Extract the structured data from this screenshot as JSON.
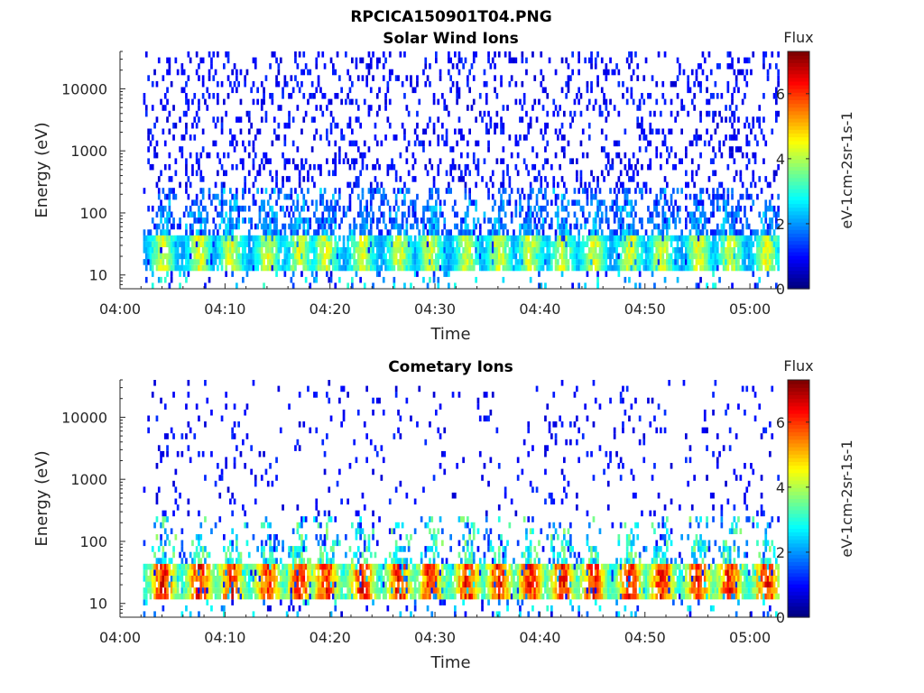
{
  "figure": {
    "filename_title": "RPCICA150901T04.PNG"
  },
  "colors": {
    "axes": "#262626",
    "colormap": "jet"
  },
  "chart_data": [
    {
      "type": "heatmap",
      "title": "Solar Wind Ions",
      "xlabel": "Time",
      "ylabel": "Energy (eV)",
      "x_tick_labels": [
        "04:00",
        "04:10",
        "04:20",
        "04:30",
        "04:40",
        "04:50",
        "05:00"
      ],
      "x_tick_minutes": [
        0,
        10,
        20,
        30,
        40,
        50,
        60
      ],
      "xlim_minutes": [
        0,
        63
      ],
      "data_x_range_minutes": [
        2.2,
        62.8
      ],
      "y_scale": "log",
      "ylim": [
        6,
        40000
      ],
      "y_tick_labels": [
        "10",
        "100",
        "1000",
        "10000"
      ],
      "y_tick_values": [
        10,
        100,
        1000,
        10000
      ],
      "colorbar": {
        "title": "Flux",
        "label": "eV-1cm-2sr-1s-1",
        "range": [
          0,
          7.3
        ],
        "tick_labels": [
          "0",
          "2",
          "4",
          "6"
        ],
        "tick_values": [
          0,
          2,
          4,
          6
        ]
      },
      "pattern": {
        "bursts_minutes": [
          4,
          7.5,
          10.5,
          14,
          17,
          19.5,
          23,
          26.5,
          29.5,
          33,
          36,
          39,
          42,
          45,
          48.5,
          51.5,
          55,
          58,
          61.5
        ],
        "core_energy_range_eV": [
          12,
          45
        ],
        "core_peak_flux": 4.8,
        "background_scatter_flux": 0.8,
        "scatter_density": 0.18
      }
    },
    {
      "type": "heatmap",
      "title": "Cometary Ions",
      "xlabel": "Time",
      "ylabel": "Energy (eV)",
      "x_tick_labels": [
        "04:00",
        "04:10",
        "04:20",
        "04:30",
        "04:40",
        "04:50",
        "05:00"
      ],
      "x_tick_minutes": [
        0,
        10,
        20,
        30,
        40,
        50,
        60
      ],
      "xlim_minutes": [
        0,
        63
      ],
      "data_x_range_minutes": [
        2.2,
        62.8
      ],
      "y_scale": "log",
      "ylim": [
        6,
        40000
      ],
      "y_tick_labels": [
        "10",
        "100",
        "1000",
        "10000"
      ],
      "y_tick_values": [
        10,
        100,
        1000,
        10000
      ],
      "colorbar": {
        "title": "Flux",
        "label": "eV-1cm-2sr-1s-1",
        "range": [
          0,
          7.3
        ],
        "tick_labels": [
          "0",
          "2",
          "4",
          "6"
        ],
        "tick_values": [
          0,
          2,
          4,
          6
        ]
      },
      "pattern": {
        "bursts_minutes": [
          4,
          7.5,
          10.5,
          14,
          17,
          19.5,
          23,
          26.5,
          29.5,
          33,
          36,
          39,
          42,
          45,
          48.5,
          51.5,
          55,
          58,
          61.5
        ],
        "core_energy_range_eV": [
          12,
          45
        ],
        "core_peak_flux": 7.0,
        "background_scatter_flux": 0.8,
        "scatter_density": 0.05
      }
    }
  ]
}
